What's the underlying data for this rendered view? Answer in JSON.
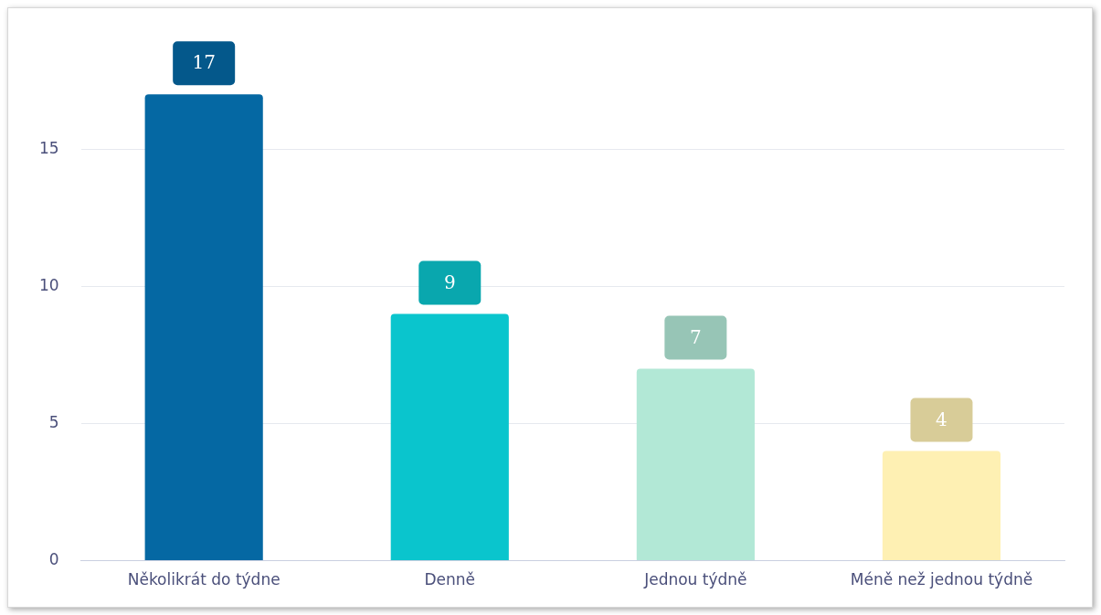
{
  "chart_data": {
    "type": "bar",
    "categories": [
      "Několikrát do týdne",
      "Denně",
      "Jednou týdně",
      "Méně než jednou týdně"
    ],
    "values": [
      17,
      9,
      7,
      4
    ],
    "colors": [
      "#0568a3",
      "#0ac5cd",
      "#b2e8d6",
      "#fef0b3"
    ],
    "ylim": [
      0,
      19
    ],
    "yticks": [
      0,
      5,
      10,
      15
    ],
    "grid": "y",
    "data_labels": true
  }
}
